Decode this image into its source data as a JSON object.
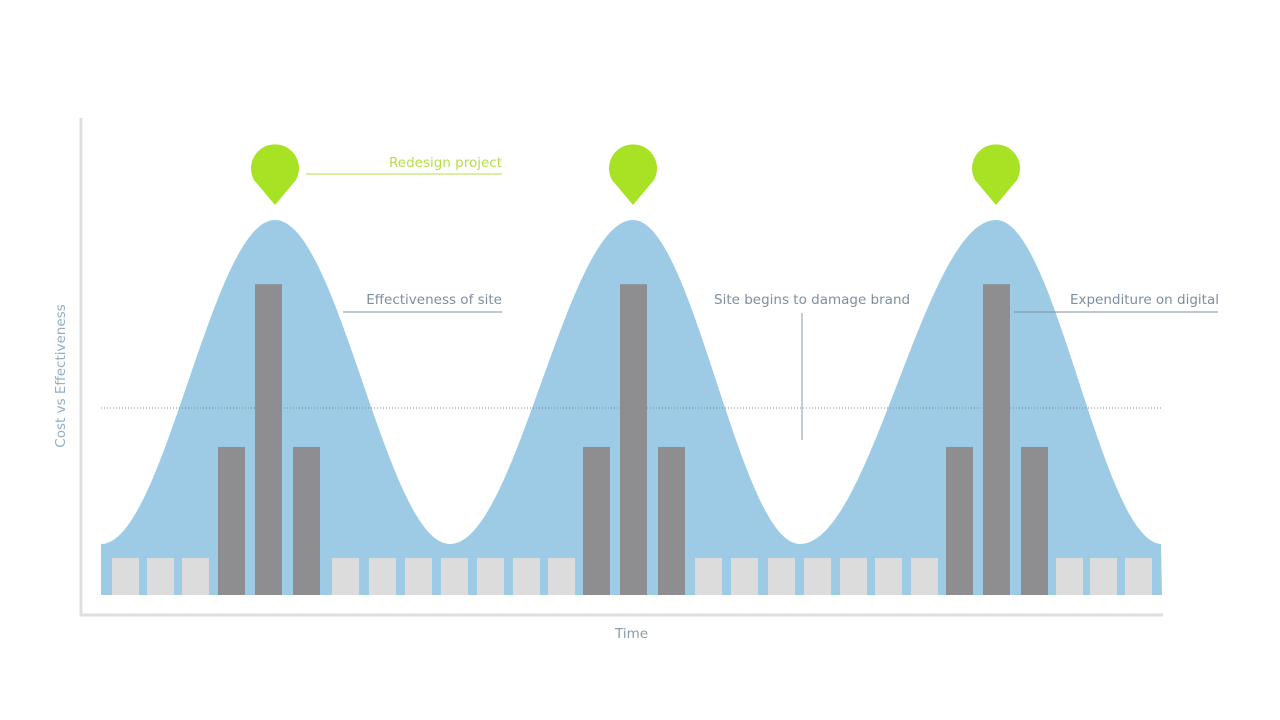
{
  "axes": {
    "y_label": "Cost vs Effectiveness",
    "x_label": "Time"
  },
  "annotations": {
    "redesign": "Redesign project",
    "effectiveness": "Effectiveness of site",
    "damage": "Site begins to damage brand",
    "expenditure": "Expenditure on digital"
  },
  "chart_data": {
    "type": "area+bar",
    "series": [
      {
        "name": "Effectiveness of site",
        "kind": "area",
        "shape": "three bell-shaped peaks over time",
        "peaks": 3
      },
      {
        "name": "Expenditure on digital",
        "kind": "bar",
        "values": [
          1,
          1,
          1,
          4,
          8.4,
          4,
          1,
          1,
          1,
          1,
          1,
          1,
          1,
          4,
          8.4,
          4,
          1,
          1,
          1,
          1,
          1,
          1,
          1,
          4,
          8.4,
          4,
          1,
          1,
          1
        ]
      }
    ],
    "threshold_line": "dotted horizontal reference line",
    "markers": "Redesign project pin above each peak"
  },
  "colors": {
    "area": "#9dcbe6",
    "bar_high": "#8e8e90",
    "bar_low": "#dcdcdc",
    "pin": "#a8e225",
    "axis": "#dedede",
    "label": "#7d8fa0"
  }
}
